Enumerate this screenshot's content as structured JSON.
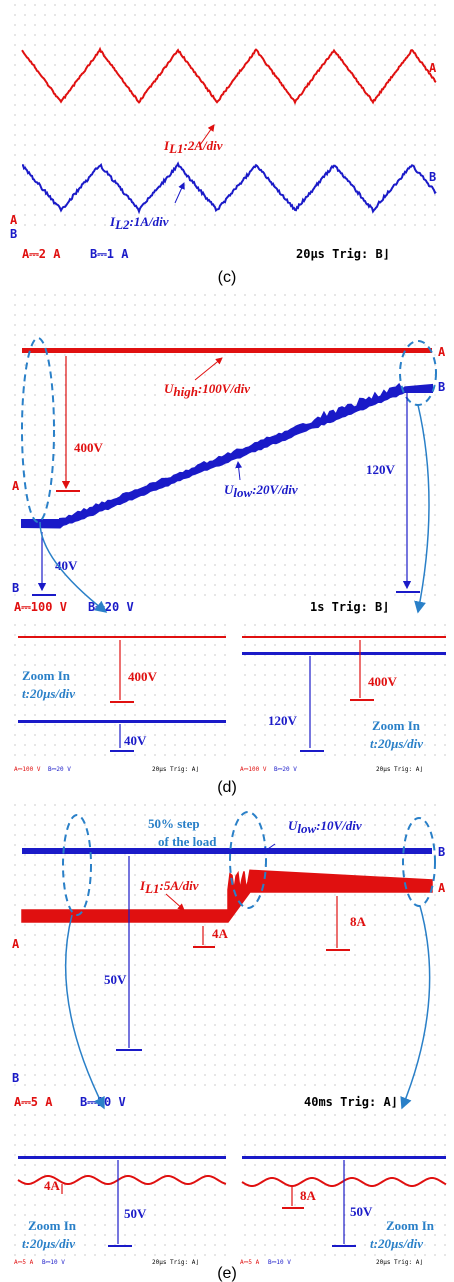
{
  "colors": {
    "ch1": "#e01010",
    "ch2": "#1a1ac8",
    "annot": "#2060b0",
    "grid": "#8a8a8a"
  },
  "chart_data": [
    {
      "id": "c",
      "type": "line",
      "caption": "(c)",
      "channels": [
        {
          "marker": "A",
          "label": "I",
          "sub": "L1",
          "scale": ":2A/div"
        },
        {
          "marker": "B",
          "label": "I",
          "sub": "L2",
          "scale": ":1A/div"
        }
      ],
      "footer": {
        "ch1": "A⎓2 A",
        "ch2": "B⎓1 A",
        "time": "20µs Trig: B⌋"
      }
    },
    {
      "id": "d",
      "type": "line",
      "caption": "(d)",
      "channels": [
        {
          "marker": "A",
          "label": "U",
          "sub": "high",
          "scale": ":100V/div"
        },
        {
          "marker": "B",
          "label": "U",
          "sub": "low",
          "scale": ":20V/div"
        }
      ],
      "annotations": [
        "400V",
        "40V",
        "120V"
      ],
      "footer": {
        "ch1": "A⎓100 V",
        "ch2": "B⎓20 V",
        "time": "1s Trig: B⌋"
      },
      "zoom": [
        {
          "label": "Zoom In",
          "time": "t:20µs/div",
          "high": "400V",
          "low": "40V",
          "footer": {
            "ch1": "A⎓100 V",
            "ch2": "B⎓20 V",
            "time": "20µs Trig: A⌋"
          }
        },
        {
          "label": "Zoom In",
          "time": "t:20µs/div",
          "high": "400V",
          "low": "120V",
          "footer": {
            "ch1": "A⎓100 V",
            "ch2": "B⎓20 V",
            "time": "20µs Trig: A⌋"
          }
        }
      ]
    },
    {
      "id": "e",
      "type": "line",
      "caption": "(e)",
      "channels": [
        {
          "marker": "A",
          "label": "I",
          "sub": "L1",
          "scale": ":5A/div"
        },
        {
          "marker": "B",
          "label": "U",
          "sub": "low",
          "scale": ":10V/div"
        }
      ],
      "step_label": [
        "50% step",
        "of the load"
      ],
      "annotations": [
        "4A",
        "8A",
        "50V"
      ],
      "footer": {
        "ch1": "A⎓5 A",
        "ch2": "B⎓10 V",
        "time": "40ms Trig: A⌋"
      },
      "zoom": [
        {
          "label": "Zoom In",
          "time": "t:20µs/div",
          "current": "4A",
          "voltage": "50V",
          "footer": {
            "ch1": "A⎓5 A",
            "ch2": "B⎓10 V",
            "time": "20µs Trig: A⌋"
          }
        },
        {
          "label": "Zoom In",
          "time": "t:20µs/div",
          "current": "8A",
          "voltage": "50V",
          "footer": {
            "ch1": "A⎓5 A",
            "ch2": "B⎓10 V",
            "time": "20µs Trig: A⌋"
          }
        }
      ]
    }
  ]
}
